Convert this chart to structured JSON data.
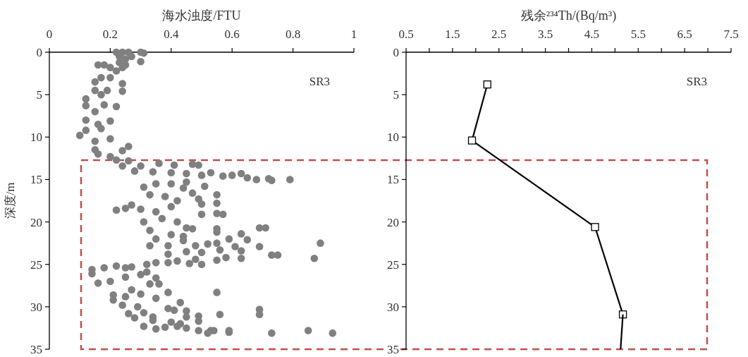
{
  "chart_data": [
    {
      "type": "scatter",
      "xlabel": "海水浊度/FTU",
      "ylabel": "深度/m",
      "annotations": [
        "SR3"
      ],
      "xlim": [
        0,
        1
      ],
      "xticks": [
        0,
        0.2,
        0.4,
        0.6,
        0.8,
        1
      ],
      "ylim": [
        35,
        0
      ],
      "yticks": [
        0,
        5,
        10,
        15,
        20,
        25,
        30,
        35
      ],
      "marker": "circle",
      "series": [
        {
          "color": "#808080",
          "x": [
            0.22,
            0.24,
            0.26,
            0.3,
            0.31,
            0.23,
            0.25,
            0.27,
            0.3,
            0.25,
            0.23,
            0.16,
            0.18,
            0.2,
            0.24,
            0.22,
            0.15,
            0.17,
            0.2,
            0.15,
            0.19,
            0.24,
            0.24,
            0.17,
            0.12,
            0.12,
            0.18,
            0.22,
            0.15,
            0.12,
            0.2,
            0.16,
            0.17,
            0.1,
            0.12,
            0.2,
            0.15,
            0.15,
            0.26,
            0.16,
            0.2,
            0.24,
            0.22,
            0.26,
            0.24,
            0.3,
            0.36,
            0.41,
            0.47,
            0.49,
            0.28,
            0.34,
            0.4,
            0.45,
            0.5,
            0.53,
            0.57,
            0.6,
            0.63,
            0.65,
            0.68,
            0.72,
            0.73,
            0.79,
            0.51,
            0.45,
            0.31,
            0.35,
            0.4,
            0.44,
            0.47,
            0.33,
            0.38,
            0.42,
            0.55,
            0.49,
            0.5,
            0.55,
            0.22,
            0.25,
            0.27,
            0.3,
            0.35,
            0.4,
            0.5,
            0.55,
            0.57,
            0.31,
            0.33,
            0.37,
            0.42,
            0.45,
            0.47,
            0.55,
            0.55,
            0.35,
            0.4,
            0.44,
            0.69,
            0.71,
            0.63,
            0.59,
            0.65,
            0.33,
            0.39,
            0.44,
            0.48,
            0.52,
            0.55,
            0.45,
            0.5,
            0.56,
            0.61,
            0.63,
            0.69,
            0.89,
            0.73,
            0.75,
            0.87,
            0.63,
            0.58,
            0.55,
            0.46,
            0.5,
            0.39,
            0.48,
            0.32,
            0.35,
            0.39,
            0.42,
            0.14,
            0.14,
            0.18,
            0.22,
            0.25,
            0.27,
            0.16,
            0.2,
            0.25,
            0.3,
            0.35,
            0.32,
            0.21,
            0.21,
            0.24,
            0.27,
            0.3,
            0.33,
            0.36,
            0.39,
            0.55,
            0.25,
            0.29,
            0.35,
            0.43,
            0.26,
            0.28,
            0.31,
            0.34,
            0.39,
            0.41,
            0.45,
            0.45,
            0.49,
            0.49,
            0.56,
            0.69,
            0.69,
            0.31,
            0.35,
            0.38,
            0.42,
            0.45,
            0.49,
            0.53,
            0.52,
            0.54,
            0.59,
            0.59,
            0.73,
            0.85,
            0.93,
            0.34,
            0.4,
            0.43
          ],
          "values": [
            0,
            0,
            0,
            0,
            0.1,
            0.5,
            0.8,
            0.5,
            1.1,
            1.5,
            1.2,
            1.5,
            1.5,
            1.8,
            1.8,
            2.2,
            3.5,
            3,
            3,
            4.5,
            4.5,
            3.7,
            4.6,
            5,
            5.5,
            6.3,
            6.2,
            6.4,
            7,
            8,
            8.1,
            8.5,
            9,
            9.8,
            9.2,
            10.2,
            10.5,
            11.5,
            11.1,
            12,
            12.3,
            11.6,
            12.7,
            12.8,
            13.4,
            13.4,
            13.1,
            13.3,
            13.2,
            13.3,
            14,
            14.1,
            14.2,
            14.3,
            14.5,
            14.2,
            14.6,
            14.5,
            14.3,
            14.8,
            15,
            14.9,
            15.1,
            15,
            15.8,
            15.3,
            15.9,
            15.5,
            15.5,
            16,
            16.6,
            16.8,
            17,
            17.5,
            16.8,
            17.3,
            17.9,
            17.8,
            18.6,
            18.4,
            18,
            18.5,
            18.8,
            18.2,
            19.1,
            19,
            19.1,
            20,
            21,
            19.6,
            20,
            20.7,
            20.8,
            20.8,
            21.2,
            22,
            21.5,
            21.7,
            20.7,
            20.7,
            21.4,
            22,
            22.1,
            22.8,
            22.8,
            22.2,
            22.8,
            22.6,
            22.5,
            23.5,
            23.6,
            23.3,
            22.9,
            23.4,
            22.9,
            22.5,
            23.9,
            23.9,
            24.3,
            24.3,
            24.2,
            24.5,
            24.9,
            25,
            23.8,
            24.4,
            25,
            24.8,
            24.8,
            24.6,
            25.6,
            26.1,
            25.4,
            25.2,
            25.4,
            25.3,
            27.2,
            27,
            26.5,
            26.2,
            26.6,
            25.9,
            28.6,
            29.2,
            29.8,
            28,
            28.5,
            27.3,
            27.3,
            28.3,
            28.3,
            28.8,
            30,
            29,
            29.5,
            30.8,
            31.3,
            30.7,
            31.2,
            30.2,
            30.4,
            30.5,
            31.2,
            31.1,
            31.7,
            30.9,
            30.3,
            30.9,
            32.3,
            32.6,
            32.4,
            32.3,
            32.5,
            32.8,
            32.8,
            33.1,
            32.8,
            32.8,
            33,
            33.1,
            32.8,
            33.1,
            31.6,
            31.8,
            32
          ]
        }
      ]
    },
    {
      "type": "line",
      "xlabel": "残余²³⁴Th/(Bq/m³)",
      "annotations": [
        "SR3"
      ],
      "xlim": [
        0.5,
        7.5
      ],
      "xticks": [
        0.5,
        {
          "value": 1,
          "label": null
        },
        1.5,
        {
          "value": 2,
          "label": null
        },
        2.5,
        {
          "value": 3,
          "label": null
        },
        3.5,
        {
          "value": 4,
          "label": null
        },
        4.5,
        {
          "value": 5,
          "label": null
        },
        5.5,
        {
          "value": 6,
          "label": null
        },
        6.5,
        {
          "value": 7,
          "label": null
        },
        7.5
      ],
      "ylim": [
        35,
        0
      ],
      "yticks": [
        0,
        5,
        10,
        15,
        20,
        25,
        30,
        35
      ],
      "line_style": "solid",
      "series": [
        {
          "color": "#000000",
          "marker": "square",
          "x": [
            2.25,
            1.92,
            4.57,
            5.17
          ],
          "values": [
            3.8,
            10.4,
            20.6,
            30.9
          ]
        },
        {
          "color": "#000000",
          "marker": "none",
          "x": [
            5.17,
            5.12
          ],
          "values": [
            30.9,
            35
          ]
        }
      ]
    }
  ]
}
